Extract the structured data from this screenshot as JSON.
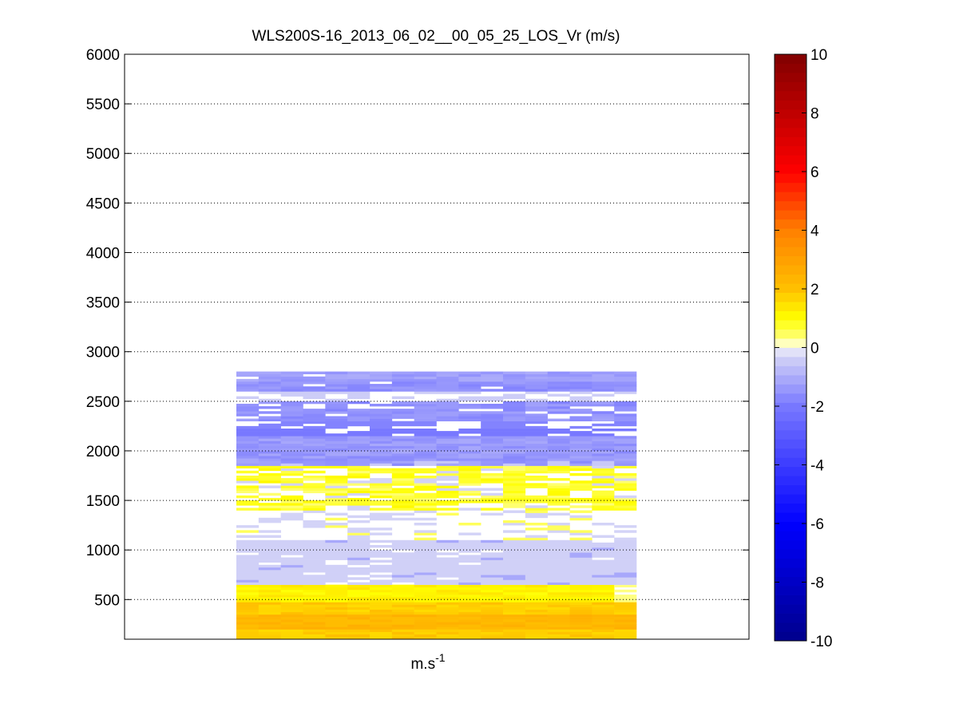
{
  "chart_data": {
    "type": "heatmap",
    "title": "WLS200S-16_2013_06_02__00_05_25_LOS_Vr (m/s)",
    "xlabel": "m.s",
    "xlabel_superscript": "-1",
    "ylabel": "",
    "ylim": [
      100,
      6000
    ],
    "y_ticks": [
      500,
      1000,
      1500,
      2000,
      2500,
      3000,
      3500,
      4000,
      4500,
      5000,
      5500,
      6000
    ],
    "y_grid": "dotted",
    "x_tick_labels": [],
    "columns": 18,
    "data_extent": {
      "height_min": 100,
      "height_max": 2800
    },
    "colorbar": {
      "min": -10,
      "max": 10,
      "ticks": [
        -10,
        -8,
        -6,
        -4,
        -2,
        0,
        2,
        4,
        6,
        8,
        10
      ],
      "colormap": "blue-white-yellow-red",
      "colors": [
        "#00008b",
        "#0000ff",
        "#7878ff",
        "#d8d8f6",
        "#ffffff",
        "#ffff80",
        "#ffff00",
        "#ffc000",
        "#ff8000",
        "#ff0000",
        "#800000"
      ]
    },
    "bands": [
      {
        "from": 100,
        "to": 600,
        "value": 1.5,
        "note": "yellow/orange, max ~2.5 near 250 m"
      },
      {
        "from": 600,
        "to": 1080,
        "value": -0.3
      },
      {
        "from": 1080,
        "to": 1400,
        "value": null
      },
      {
        "from": 1400,
        "to": 1850,
        "value": 0.9
      },
      {
        "from": 1850,
        "to": 2150,
        "value": -1.4
      },
      {
        "from": 2150,
        "to": 2800,
        "value": -1.3,
        "note": "patchy, gaps near 2200 and 2600 m"
      }
    ]
  },
  "colors": {
    "axis": "#000000",
    "grid": "#000000",
    "background": "#ffffff"
  }
}
